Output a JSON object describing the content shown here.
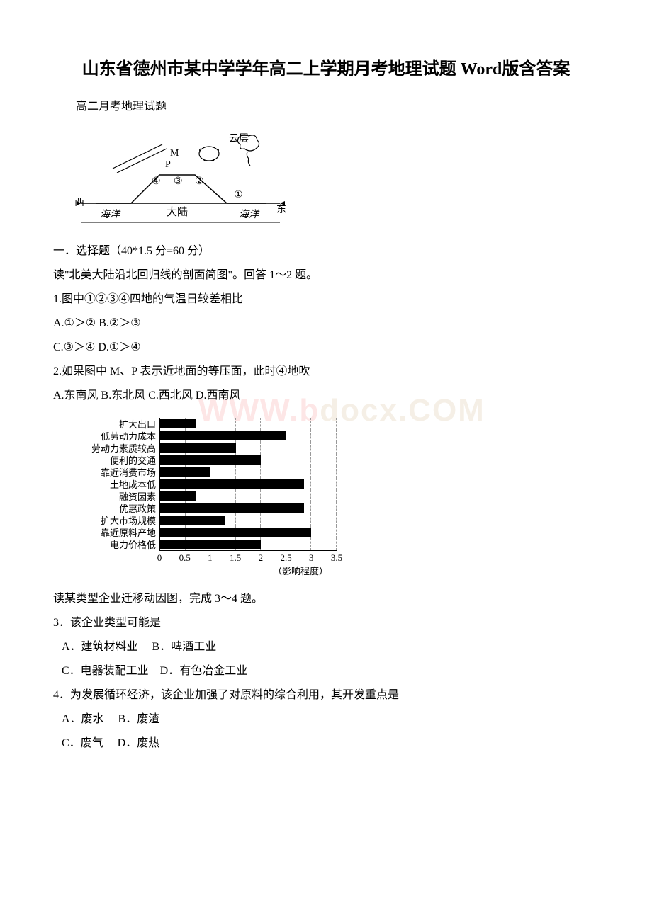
{
  "title": "山东省德州市某中学学年高二上学期月考地理试题 Word版含答案",
  "subtitle": "高二月考地理试题",
  "diagram1": {
    "labels": {
      "west": "西",
      "east": "东",
      "ocean": "海洋",
      "continent": "大陆",
      "cloud": "云层",
      "m": "M",
      "p": "P",
      "n1": "①",
      "n2": "②",
      "n3": "③",
      "n4": "④"
    }
  },
  "section1_heading": "一．选择题（40*1.5 分=60 分）",
  "intro1": "读\"北美大陆沿北回归线的剖面简图\"。回答 1～2 题。",
  "q1": {
    "stem": "1.图中①②③④四地的气温日较差相比",
    "a": "A.①＞② B.②＞③",
    "c": "C.③＞④ D.①＞④"
  },
  "q2": {
    "stem": "2.如果图中 M、P 表示近地面的等压面，此时④地吹",
    "opts": "A.东南风 B.东北风 C.西北风 D.西南风"
  },
  "chart": {
    "categories": [
      "扩大出口",
      "低劳动力成本",
      "劳动力素质较高",
      "便利的交通",
      "靠近消费市场",
      "土地成本低",
      "融资因素",
      "优惠政策",
      "扩大市场规模",
      "靠近原料产地",
      "电力价格低"
    ],
    "values": [
      0.7,
      2.5,
      1.5,
      2.0,
      1.0,
      2.85,
      0.7,
      2.85,
      1.3,
      3.0,
      2.0
    ],
    "max": 3.5,
    "ticks": [
      "0",
      "0.5",
      "1",
      "1.5",
      "2",
      "2.5",
      "3",
      "3.5"
    ],
    "xlabel": "（影响程度）",
    "bar_color": "#000000",
    "grid_color": "#999999"
  },
  "intro2": "读某类型企业迁移动因图，完成 3～4 题。",
  "q3": {
    "stem": "3．该企业类型可能是",
    "a": "A．建筑材料业　 B．啤酒工业",
    "c": "C．电器装配工业　D．有色冶金工业"
  },
  "q4": {
    "stem": "4．为发展循环经济，该企业加强了对原料的综合利用，其开发重点是",
    "a": "A．废水　 B．废渣",
    "c": "C．废气　 D．废热"
  },
  "watermark": {
    "part1": "WWW.b",
    "part2": "docx.COM"
  }
}
